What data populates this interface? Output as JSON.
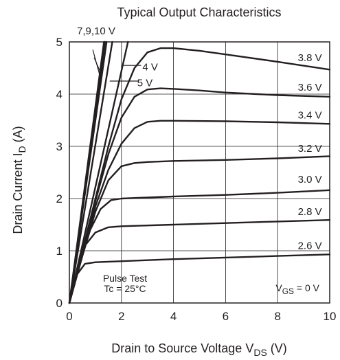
{
  "chart_data": {
    "type": "line",
    "title": "Typical Output Characteristics",
    "xlabel": {
      "main": "Drain to Source Voltage   V",
      "sub": "DS",
      "unit": "   (V)"
    },
    "ylabel": {
      "main": "Drain Current   I",
      "sub": "D",
      "unit": "   (A)"
    },
    "xlim": [
      0,
      10
    ],
    "ylim": [
      0,
      5
    ],
    "x_ticks": [
      "0",
      "2",
      "4",
      "6",
      "8",
      "10"
    ],
    "y_ticks": [
      "0",
      "1",
      "2",
      "3",
      "4",
      "5"
    ],
    "grid": true,
    "notes": {
      "pulse": "Pulse Test",
      "tc": "Tc = 25°C"
    },
    "vgs_label": {
      "main": "V",
      "sub": "GS",
      "rest": " = 0 V"
    },
    "steep_label": "7,9,10 V",
    "series": [
      {
        "name": "2.6 V",
        "x": [
          0,
          0.3,
          0.6,
          1.0,
          2,
          4,
          6,
          8,
          10
        ],
        "y": [
          0,
          0.55,
          0.75,
          0.78,
          0.8,
          0.84,
          0.87,
          0.9,
          0.93
        ]
      },
      {
        "name": "2.8 V",
        "x": [
          0,
          0.3,
          0.6,
          1.0,
          1.5,
          2,
          4,
          6,
          8,
          10
        ],
        "y": [
          0,
          0.65,
          1.1,
          1.35,
          1.45,
          1.47,
          1.5,
          1.53,
          1.56,
          1.59
        ]
      },
      {
        "name": "3.0 V",
        "x": [
          0,
          0.4,
          0.8,
          1.2,
          1.6,
          2,
          3,
          4,
          6,
          8,
          10
        ],
        "y": [
          0,
          0.75,
          1.4,
          1.8,
          1.97,
          2.0,
          2.02,
          2.04,
          2.07,
          2.11,
          2.16
        ]
      },
      {
        "name": "3.2 V",
        "x": [
          0,
          0.5,
          1.0,
          1.5,
          2,
          2.5,
          3,
          4,
          6,
          8,
          10
        ],
        "y": [
          0,
          0.9,
          1.75,
          2.35,
          2.62,
          2.68,
          2.7,
          2.72,
          2.74,
          2.77,
          2.81
        ]
      },
      {
        "name": "3.4 V",
        "x": [
          0,
          0.5,
          1.0,
          1.5,
          2,
          2.5,
          3,
          3.5,
          4,
          6,
          8,
          10
        ],
        "y": [
          0,
          0.95,
          1.85,
          2.55,
          3.05,
          3.35,
          3.47,
          3.49,
          3.49,
          3.48,
          3.46,
          3.43
        ]
      },
      {
        "name": "3.6 V",
        "x": [
          0,
          0.5,
          1.0,
          1.5,
          2,
          2.5,
          3,
          3.5,
          4,
          5,
          6,
          8,
          10
        ],
        "y": [
          0,
          0.98,
          1.95,
          2.85,
          3.55,
          3.95,
          4.09,
          4.11,
          4.1,
          4.07,
          4.03,
          3.98,
          3.95
        ]
      },
      {
        "name": "3.8 V",
        "x": [
          0,
          0.5,
          1.0,
          1.5,
          2,
          2.5,
          3,
          3.5,
          4,
          5,
          6,
          8,
          10
        ],
        "y": [
          0,
          1.0,
          2.0,
          3.0,
          3.9,
          4.5,
          4.8,
          4.88,
          4.88,
          4.83,
          4.76,
          4.62,
          4.47
        ]
      },
      {
        "name": "4 V",
        "x": [
          0,
          2.25
        ],
        "y": [
          0,
          5.0
        ]
      },
      {
        "name": "5 V",
        "x": [
          0,
          1.65
        ],
        "y": [
          0,
          5.0
        ]
      },
      {
        "name": "7 V",
        "x": [
          0,
          1.43
        ],
        "y": [
          0,
          5.0
        ]
      },
      {
        "name": "9 V",
        "x": [
          0,
          1.37
        ],
        "y": [
          0,
          5.0
        ]
      },
      {
        "name": "10 V",
        "x": [
          0,
          1.33
        ],
        "y": [
          0,
          5.0
        ]
      }
    ],
    "curve_labels": [
      {
        "text": "4 V",
        "x": 3.4,
        "y": 4.52
      },
      {
        "text": "5 V",
        "x": 3.2,
        "y": 4.22
      },
      {
        "text": "3.8 V",
        "x": 9.7,
        "y": 4.7
      },
      {
        "text": "3.6 V",
        "x": 9.7,
        "y": 4.13
      },
      {
        "text": "3.4 V",
        "x": 9.7,
        "y": 3.6
      },
      {
        "text": "3.2 V",
        "x": 9.7,
        "y": 2.96
      },
      {
        "text": "3.0 V",
        "x": 9.7,
        "y": 2.37
      },
      {
        "text": "2.8 V",
        "x": 9.7,
        "y": 1.75
      },
      {
        "text": "2.6 V",
        "x": 9.7,
        "y": 1.1
      }
    ]
  }
}
